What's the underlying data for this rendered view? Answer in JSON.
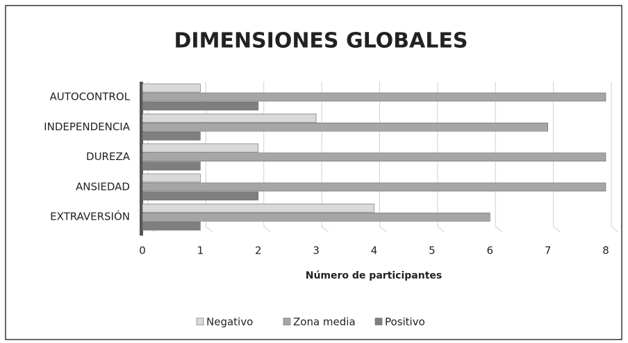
{
  "chart_data": {
    "type": "bar",
    "orientation": "horizontal",
    "title": "DIMENSIONES GLOBALES",
    "x_label": "Número de participantes",
    "categories": [
      "AUTOCONTROL",
      "INDEPENDENCIA",
      "DUREZA",
      "ANSIEDAD",
      "EXTRAVERSIÓN"
    ],
    "series": [
      {
        "name": "Negativo",
        "color": "#d9d9d9",
        "values": [
          1,
          3,
          2,
          1,
          4
        ]
      },
      {
        "name": "Zona media",
        "color": "#a6a6a6",
        "values": [
          8,
          7,
          8,
          8,
          6
        ]
      },
      {
        "name": "Positivo",
        "color": "#7f7f7f",
        "values": [
          2,
          1,
          1,
          2,
          1
        ]
      }
    ],
    "xlim": [
      0,
      8
    ],
    "xticks": [
      0,
      1,
      2,
      3,
      4,
      5,
      6,
      7,
      8
    ],
    "grid": true,
    "legend": "bottom"
  }
}
